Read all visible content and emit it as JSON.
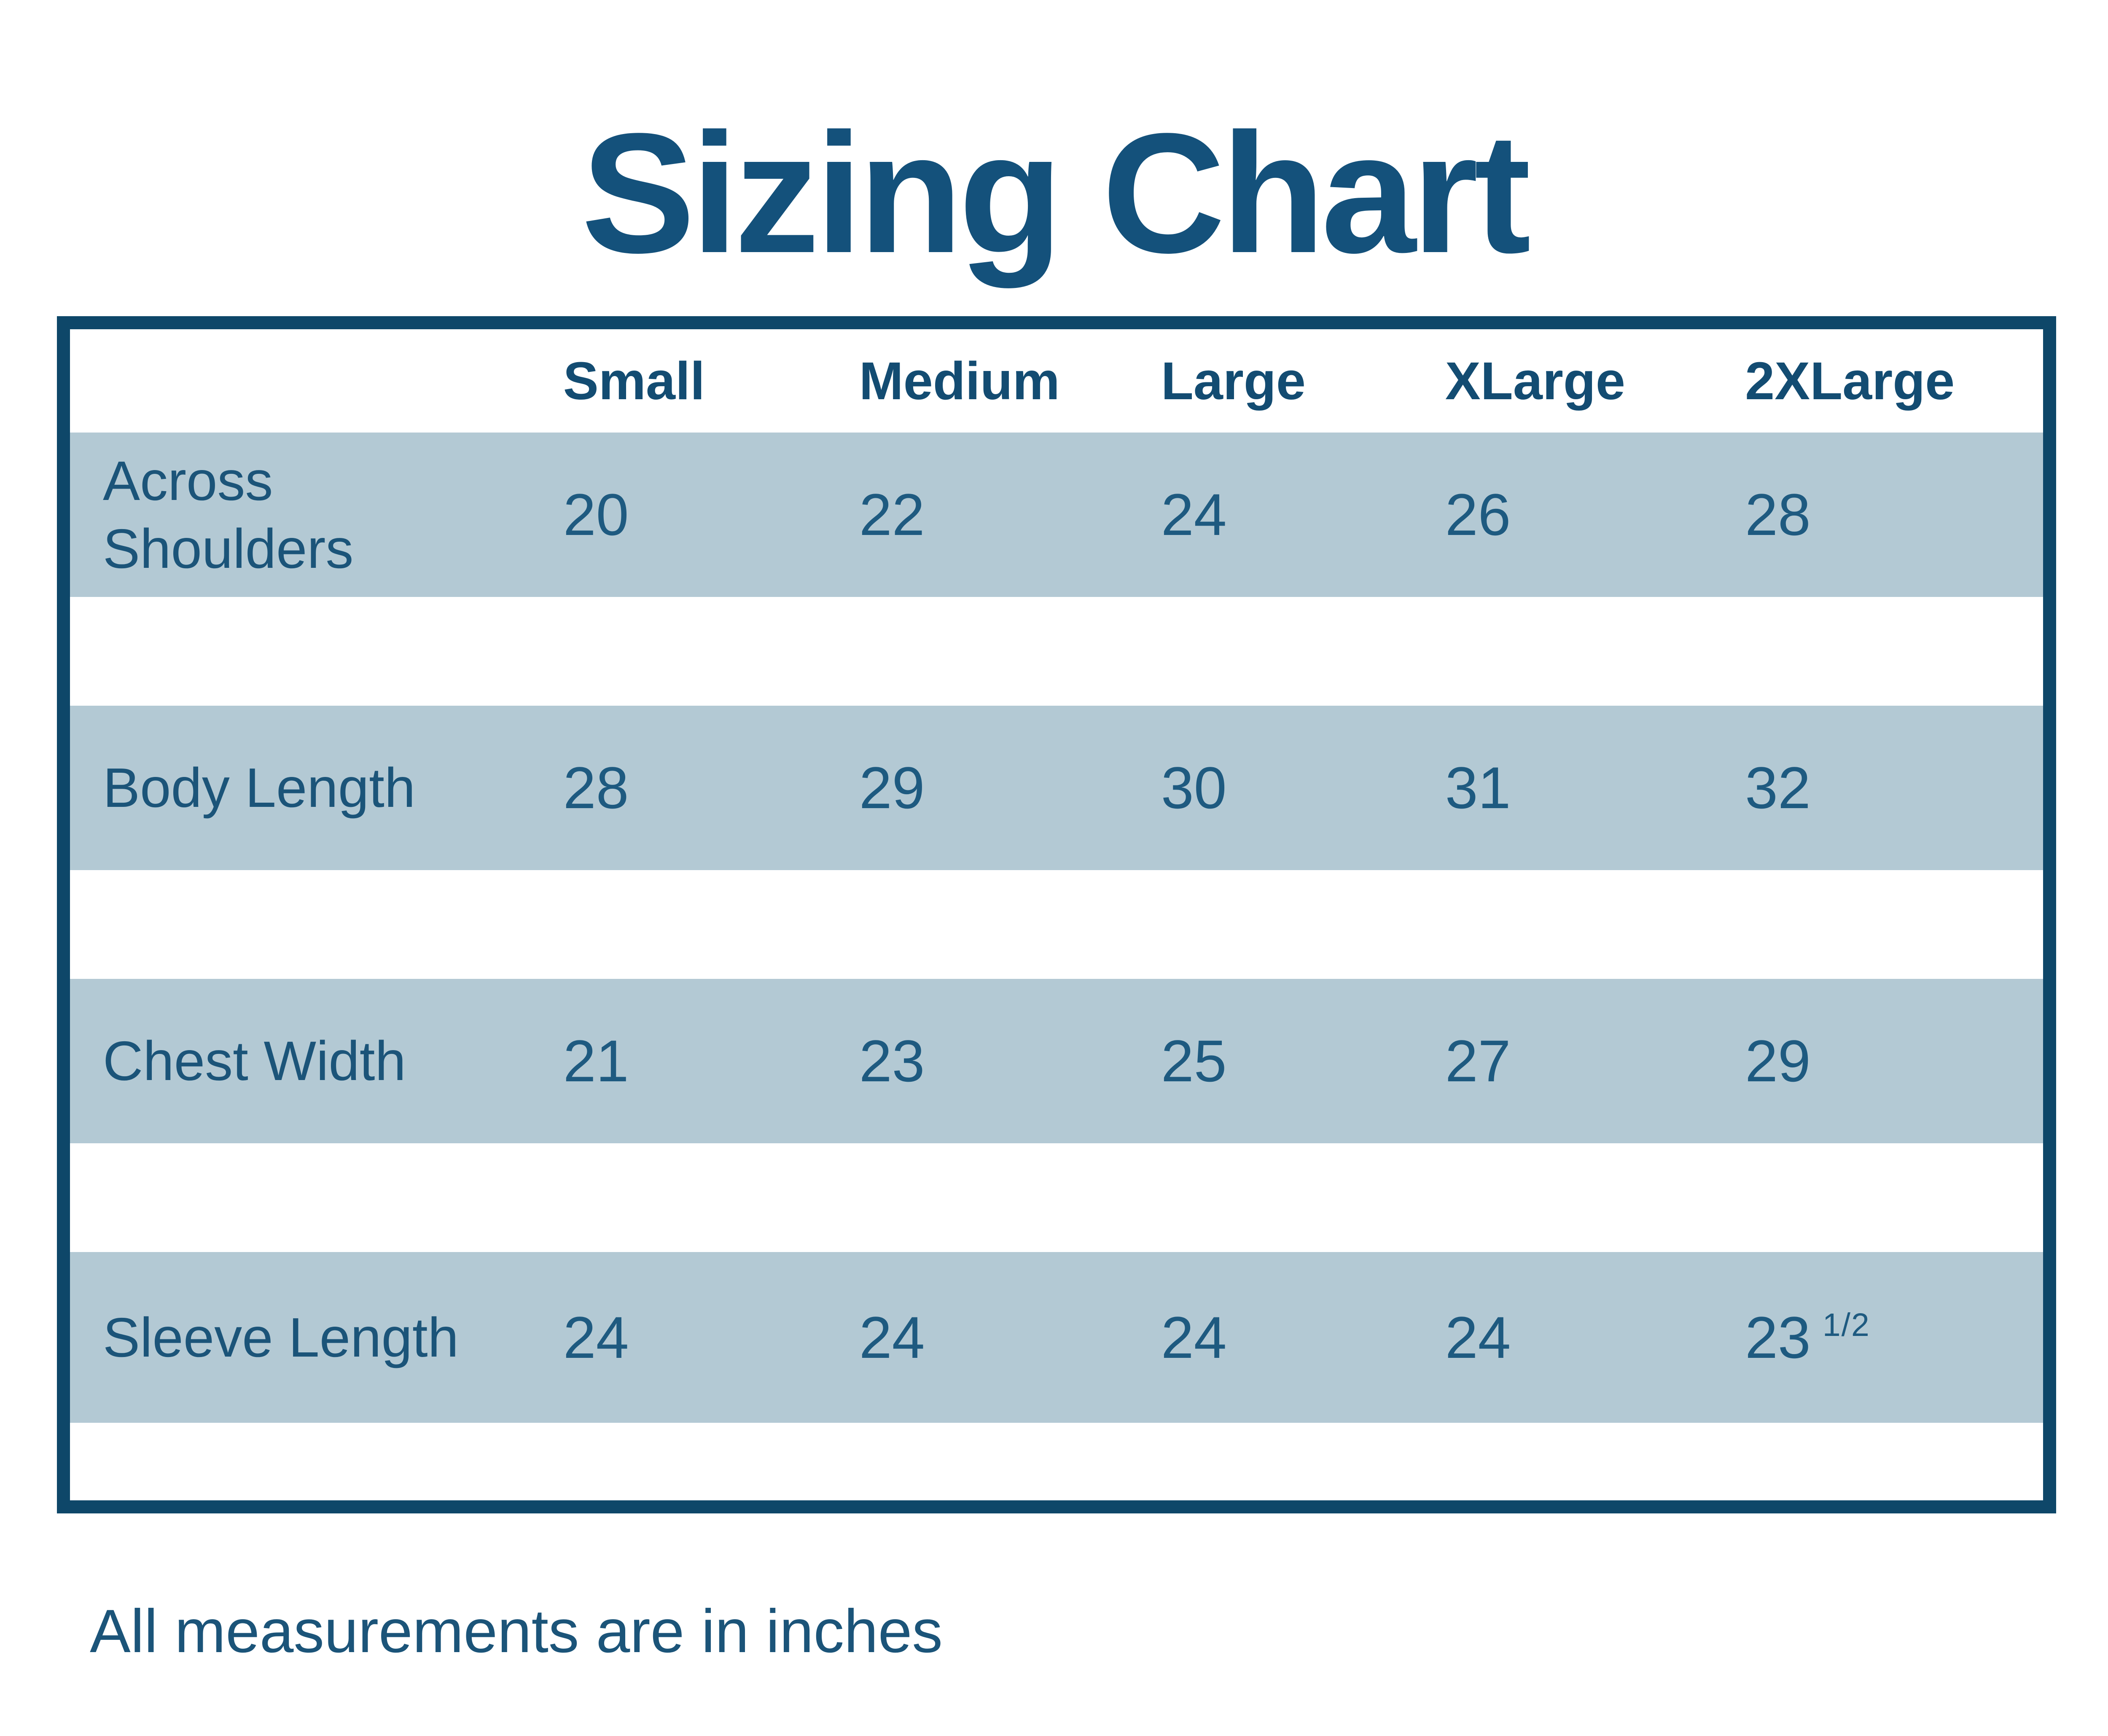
{
  "chart_data": {
    "type": "table",
    "title": "Sizing Chart",
    "columns": [
      "Small",
      "Medium",
      "Large",
      "XLarge",
      "2XLarge"
    ],
    "rows": [
      {
        "label": "Across Shoulders",
        "values": [
          "20",
          "22",
          "24",
          "26",
          "28"
        ]
      },
      {
        "label": "Body Length",
        "values": [
          "28",
          "29",
          "30",
          "31",
          "32"
        ]
      },
      {
        "label": "Chest Width",
        "values": [
          "21",
          "23",
          "25",
          "27",
          "29"
        ]
      },
      {
        "label": "Sleeve Length",
        "values": [
          "24",
          "24",
          "24",
          "24",
          "23"
        ],
        "last_value_superscript": "1/2"
      }
    ],
    "note": "All measurements are in inches",
    "layout": {
      "row_banding": true,
      "grid_lines": false,
      "legend": "none"
    }
  },
  "colors": {
    "frame_border": "#0e4769",
    "row_band": "#b3c9d4",
    "title_text": "#14517b",
    "header_text": "#134c72",
    "label_text": "#1b5479",
    "value_text": "#1e5a80",
    "background": "#ffffff"
  }
}
